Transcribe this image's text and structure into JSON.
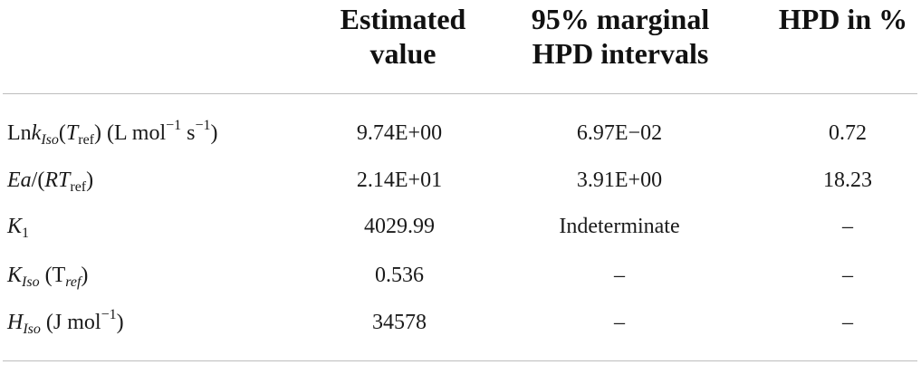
{
  "header": {
    "estimated_line1": "Estimated",
    "estimated_line2": "value",
    "hpd_line1": "95% marginal",
    "hpd_line2": "HPD intervals",
    "hpd_pct": "HPD in %"
  },
  "rows": [
    {
      "label_prefix": "Ln",
      "label_k": "k",
      "label_k_sub": "Iso",
      "label_open": "(",
      "label_T": "T",
      "label_T_sub": "ref",
      "label_close": ") (L mol",
      "label_sup1": "−1",
      "label_s": " s",
      "label_sup2": "−1",
      "label_end": ")",
      "estimated": "9.74E+00",
      "hpd": "6.97E−02",
      "hpd_pct": "0.72"
    },
    {
      "label_Ea": "Ea",
      "label_mid": "/(",
      "label_RT": "RT",
      "label_T_sub": "ref",
      "label_end": ")",
      "estimated": "2.14E+01",
      "hpd": "3.91E+00",
      "hpd_pct": "18.23"
    },
    {
      "label_K": "K",
      "label_K_sub": "1",
      "estimated": "4029.99",
      "hpd": "Indeterminate",
      "hpd_pct": "–"
    },
    {
      "label_K": "K",
      "label_K_sub": "Iso",
      "label_open": " (T",
      "label_T_sub": "ref",
      "label_close": ")",
      "estimated": "0.536",
      "hpd": "–",
      "hpd_pct": "–"
    },
    {
      "label_H": "H",
      "label_H_sub": "Iso",
      "label_open": " (J mol",
      "label_sup": "−1",
      "label_close": ")",
      "estimated": "34578",
      "hpd": "–",
      "hpd_pct": "–"
    }
  ]
}
